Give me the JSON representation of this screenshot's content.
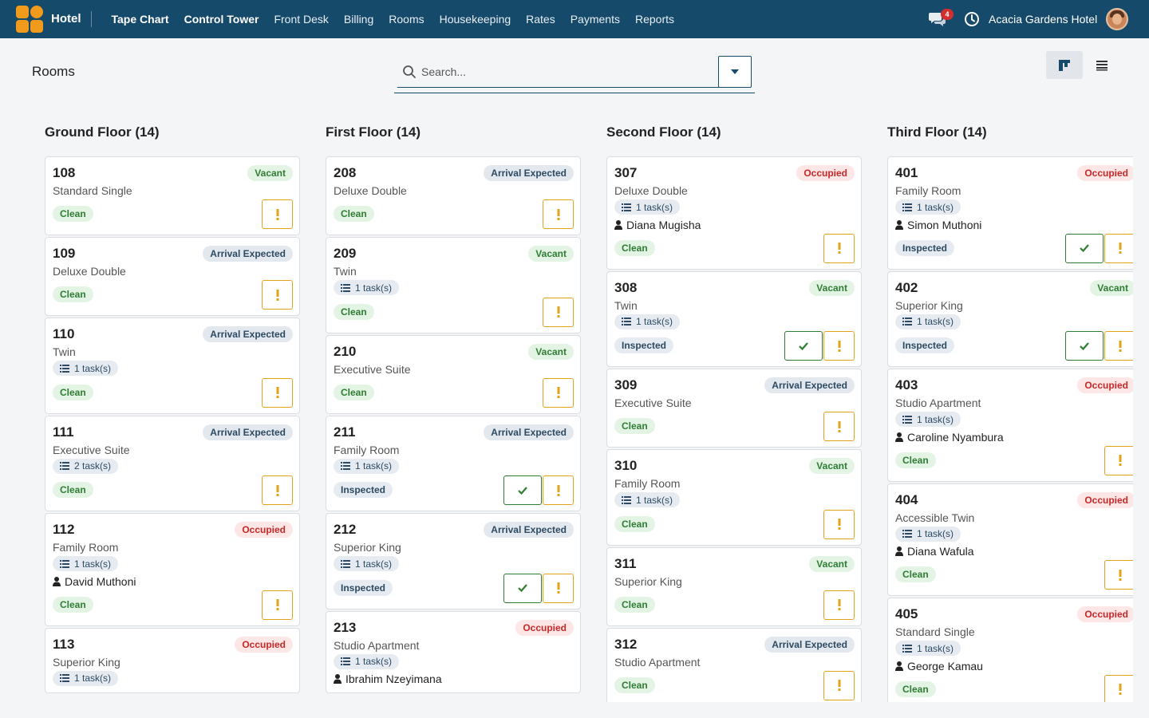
{
  "app": {
    "brand": "Hotel",
    "hotel_name": "Acacia Gardens Hotel",
    "notifications": "4"
  },
  "nav": [
    {
      "label": "Tape Chart",
      "bold": true
    },
    {
      "label": "Control Tower",
      "bold": true
    },
    {
      "label": "Front Desk"
    },
    {
      "label": "Billing"
    },
    {
      "label": "Rooms"
    },
    {
      "label": "Housekeeping"
    },
    {
      "label": "Rates"
    },
    {
      "label": "Payments"
    },
    {
      "label": "Reports"
    }
  ],
  "page": {
    "title": "Rooms",
    "search_placeholder": "Search...",
    "view_board_icon": "board-view-icon",
    "view_list_icon": "list-view-icon"
  },
  "colors": {
    "topbar": "#164a6b",
    "accent": "#f29a1c",
    "warn": "#e2a31a",
    "ok": "#2e7d32",
    "danger": "#c62828"
  },
  "floors": [
    {
      "title": "Ground Floor (14)",
      "rooms": [
        {
          "number": "108",
          "type": "Standard Single",
          "status": "Vacant",
          "hk": "Clean"
        },
        {
          "number": "109",
          "type": "Deluxe Double",
          "status": "Arrival Expected",
          "hk": "Clean"
        },
        {
          "number": "110",
          "type": "Twin",
          "status": "Arrival Expected",
          "tasks": "1 task(s)",
          "hk": "Clean"
        },
        {
          "number": "111",
          "type": "Executive Suite",
          "status": "Arrival Expected",
          "tasks": "2 task(s)",
          "hk": "Clean"
        },
        {
          "number": "112",
          "type": "Family Room",
          "status": "Occupied",
          "tasks": "1 task(s)",
          "guest": "David Muthoni",
          "hk": "Clean"
        },
        {
          "number": "113",
          "type": "Superior King",
          "status": "Occupied",
          "tasks": "1 task(s)"
        }
      ]
    },
    {
      "title": "First Floor (14)",
      "rooms": [
        {
          "number": "208",
          "type": "Deluxe Double",
          "status": "Arrival Expected",
          "hk": "Clean"
        },
        {
          "number": "209",
          "type": "Twin",
          "status": "Vacant",
          "tasks": "1 task(s)",
          "hk": "Clean"
        },
        {
          "number": "210",
          "type": "Executive Suite",
          "status": "Vacant",
          "hk": "Clean"
        },
        {
          "number": "211",
          "type": "Family Room",
          "status": "Arrival Expected",
          "tasks": "1 task(s)",
          "hk": "Inspected",
          "check": true
        },
        {
          "number": "212",
          "type": "Superior King",
          "status": "Arrival Expected",
          "tasks": "1 task(s)",
          "hk": "Inspected",
          "check": true
        },
        {
          "number": "213",
          "type": "Studio Apartment",
          "status": "Occupied",
          "tasks": "1 task(s)",
          "guest": "Ibrahim Nzeyimana"
        }
      ]
    },
    {
      "title": "Second Floor (14)",
      "rooms": [
        {
          "number": "307",
          "type": "Deluxe Double",
          "status": "Occupied",
          "tasks": "1 task(s)",
          "guest": "Diana Mugisha",
          "hk": "Clean"
        },
        {
          "number": "308",
          "type": "Twin",
          "status": "Vacant",
          "tasks": "1 task(s)",
          "hk": "Inspected",
          "check": true
        },
        {
          "number": "309",
          "type": "Executive Suite",
          "status": "Arrival Expected",
          "hk": "Clean"
        },
        {
          "number": "310",
          "type": "Family Room",
          "status": "Vacant",
          "tasks": "1 task(s)",
          "hk": "Clean"
        },
        {
          "number": "311",
          "type": "Superior King",
          "status": "Vacant",
          "hk": "Clean"
        },
        {
          "number": "312",
          "type": "Studio Apartment",
          "status": "Arrival Expected",
          "hk": "Clean"
        }
      ]
    },
    {
      "title": "Third Floor (14)",
      "rooms": [
        {
          "number": "401",
          "type": "Family Room",
          "status": "Occupied",
          "tasks": "1 task(s)",
          "guest": "Simon Muthoni",
          "hk": "Inspected",
          "check": true
        },
        {
          "number": "402",
          "type": "Superior King",
          "status": "Vacant",
          "tasks": "1 task(s)",
          "hk": "Inspected",
          "check": true
        },
        {
          "number": "403",
          "type": "Studio Apartment",
          "status": "Occupied",
          "tasks": "1 task(s)",
          "guest": "Caroline Nyambura",
          "hk": "Clean"
        },
        {
          "number": "404",
          "type": "Accessible Twin",
          "status": "Occupied",
          "tasks": "1 task(s)",
          "guest": "Diana Wafula",
          "hk": "Clean"
        },
        {
          "number": "405",
          "type": "Standard Single",
          "status": "Occupied",
          "tasks": "1 task(s)",
          "guest": "George Kamau",
          "hk": "Clean"
        }
      ]
    }
  ]
}
